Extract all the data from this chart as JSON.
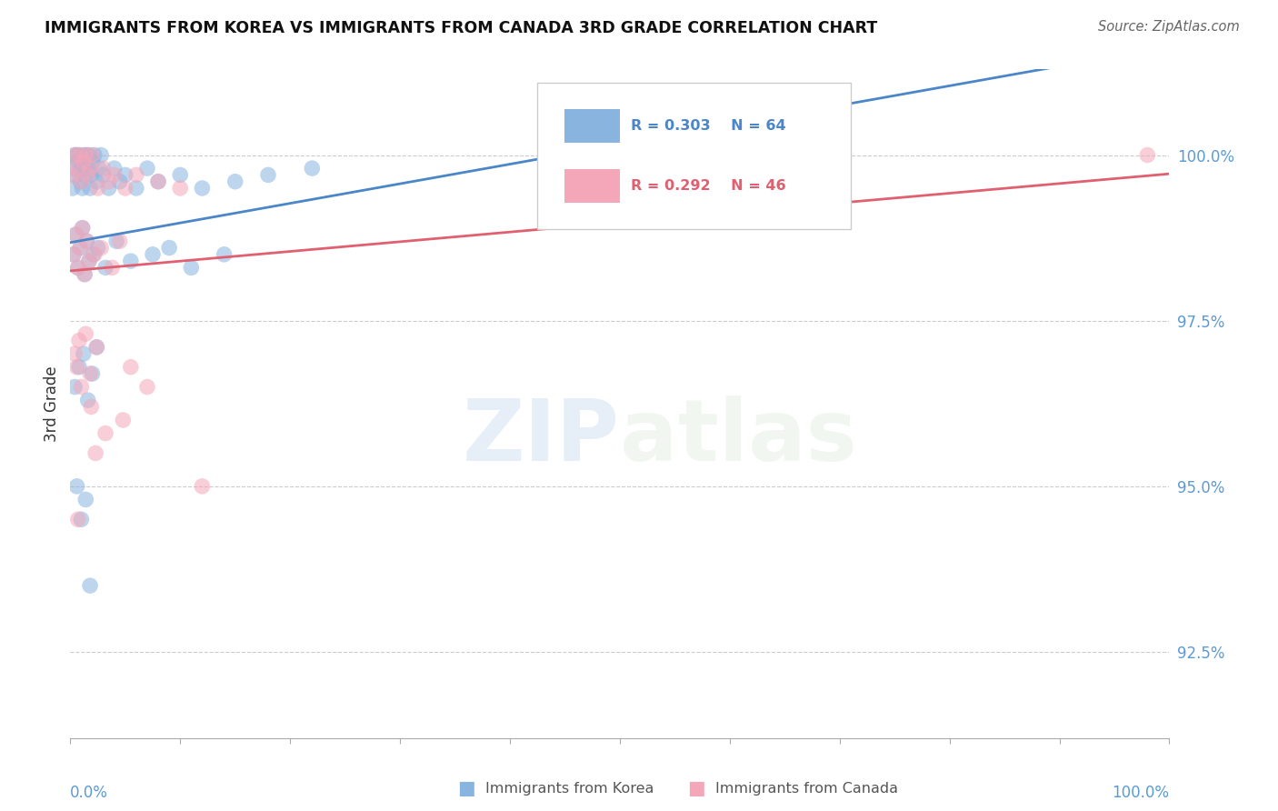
{
  "title": "IMMIGRANTS FROM KOREA VS IMMIGRANTS FROM CANADA 3RD GRADE CORRELATION CHART",
  "source": "Source: ZipAtlas.com",
  "ylabel": "3rd Grade",
  "y_ticks": [
    92.5,
    95.0,
    97.5,
    100.0
  ],
  "xlim": [
    0.0,
    100.0
  ],
  "ylim": [
    91.2,
    101.3
  ],
  "korea_R": 0.303,
  "korea_N": 64,
  "canada_R": 0.292,
  "canada_N": 46,
  "korea_color": "#8ab4e0",
  "canada_color": "#f4a7b9",
  "korea_line_color": "#4a86c8",
  "canada_line_color": "#e06070",
  "watermark_zip": "ZIP",
  "watermark_atlas": "atlas",
  "korea_x": [
    0.2,
    0.3,
    0.4,
    0.5,
    0.6,
    0.7,
    0.8,
    0.9,
    1.0,
    1.1,
    1.2,
    1.3,
    1.4,
    1.5,
    1.6,
    1.7,
    1.8,
    1.9,
    2.0,
    2.2,
    2.4,
    2.6,
    2.8,
    3.0,
    3.5,
    4.0,
    4.5,
    5.0,
    6.0,
    7.0,
    8.0,
    10.0,
    12.0,
    15.0,
    18.0,
    22.0,
    0.3,
    0.5,
    0.7,
    0.9,
    1.1,
    1.3,
    1.5,
    1.7,
    2.1,
    2.5,
    3.2,
    4.2,
    5.5,
    7.5,
    9.0,
    11.0,
    14.0,
    0.4,
    0.8,
    1.2,
    1.6,
    2.0,
    2.4,
    0.6,
    1.0,
    1.4,
    1.8,
    65.0
  ],
  "korea_y": [
    99.5,
    99.8,
    100.0,
    99.7,
    100.0,
    99.9,
    100.0,
    99.6,
    99.8,
    99.5,
    100.0,
    99.7,
    99.9,
    100.0,
    99.8,
    100.0,
    99.5,
    99.7,
    99.9,
    100.0,
    99.6,
    99.8,
    100.0,
    99.7,
    99.5,
    99.8,
    99.6,
    99.7,
    99.5,
    99.8,
    99.6,
    99.7,
    99.5,
    99.6,
    99.7,
    99.8,
    98.5,
    98.8,
    98.3,
    98.6,
    98.9,
    98.2,
    98.7,
    98.4,
    98.5,
    98.6,
    98.3,
    98.7,
    98.4,
    98.5,
    98.6,
    98.3,
    98.5,
    96.5,
    96.8,
    97.0,
    96.3,
    96.7,
    97.1,
    95.0,
    94.5,
    94.8,
    93.5,
    100.0
  ],
  "canada_x": [
    0.2,
    0.4,
    0.6,
    0.8,
    1.0,
    1.2,
    1.4,
    1.6,
    1.8,
    2.0,
    2.5,
    3.0,
    3.5,
    4.0,
    5.0,
    6.0,
    8.0,
    10.0,
    0.3,
    0.5,
    0.7,
    0.9,
    1.1,
    1.3,
    1.5,
    1.7,
    2.2,
    2.8,
    3.8,
    4.5,
    0.4,
    0.6,
    0.8,
    1.0,
    1.4,
    1.8,
    2.4,
    5.5,
    7.0,
    12.0,
    4.8,
    2.3,
    1.9,
    0.7,
    3.2,
    98.0
  ],
  "canada_y": [
    99.7,
    100.0,
    99.8,
    100.0,
    99.6,
    99.9,
    100.0,
    99.7,
    99.8,
    100.0,
    99.5,
    99.8,
    99.6,
    99.7,
    99.5,
    99.7,
    99.6,
    99.5,
    98.5,
    98.8,
    98.3,
    98.6,
    98.9,
    98.2,
    98.7,
    98.4,
    98.5,
    98.6,
    98.3,
    98.7,
    97.0,
    96.8,
    97.2,
    96.5,
    97.3,
    96.7,
    97.1,
    96.8,
    96.5,
    95.0,
    96.0,
    95.5,
    96.2,
    94.5,
    95.8,
    100.0
  ]
}
